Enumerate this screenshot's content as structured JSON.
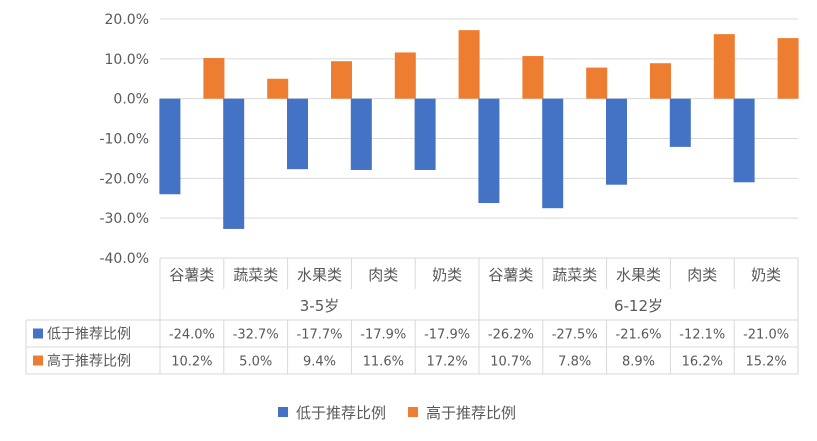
{
  "chart_data": {
    "type": "bar",
    "groups": [
      {
        "label": "3-5岁",
        "categories": [
          "谷薯类",
          "蔬菜类",
          "水果类",
          "肉类",
          "奶类"
        ]
      },
      {
        "label": "6-12岁",
        "categories": [
          "谷薯类",
          "蔬菜类",
          "水果类",
          "肉类",
          "奶类"
        ]
      }
    ],
    "series": [
      {
        "name": "低于推荐比例",
        "color": "#4472C4",
        "values": [
          -24.0,
          -32.7,
          -17.7,
          -17.9,
          -17.9,
          -26.2,
          -27.5,
          -21.6,
          -12.1,
          -21.0
        ],
        "labels": [
          "-24.0%",
          "-32.7%",
          "-17.7%",
          "-17.9%",
          "-17.9%",
          "-26.2%",
          "-27.5%",
          "-21.6%",
          "-12.1%",
          "-21.0%"
        ]
      },
      {
        "name": "高于推荐比例",
        "color": "#ED7D31",
        "values": [
          10.2,
          5.0,
          9.4,
          11.6,
          17.2,
          10.7,
          7.8,
          8.9,
          16.2,
          15.2
        ],
        "labels": [
          "10.2%",
          "5.0%",
          "9.4%",
          "11.6%",
          "17.2%",
          "10.7%",
          "7.8%",
          "8.9%",
          "16.2%",
          "15.2%"
        ]
      }
    ],
    "y_ticks": [
      20,
      10,
      0,
      -10,
      -20,
      -30,
      -40
    ],
    "y_tick_labels": [
      "20.0%",
      "10.0%",
      "0.0%",
      "-10.0%",
      "-20.0%",
      "-30.0%",
      "-40.0%"
    ],
    "ylim": [
      -40,
      20
    ],
    "grid": true,
    "legend_position": "bottom",
    "data_table": true
  }
}
